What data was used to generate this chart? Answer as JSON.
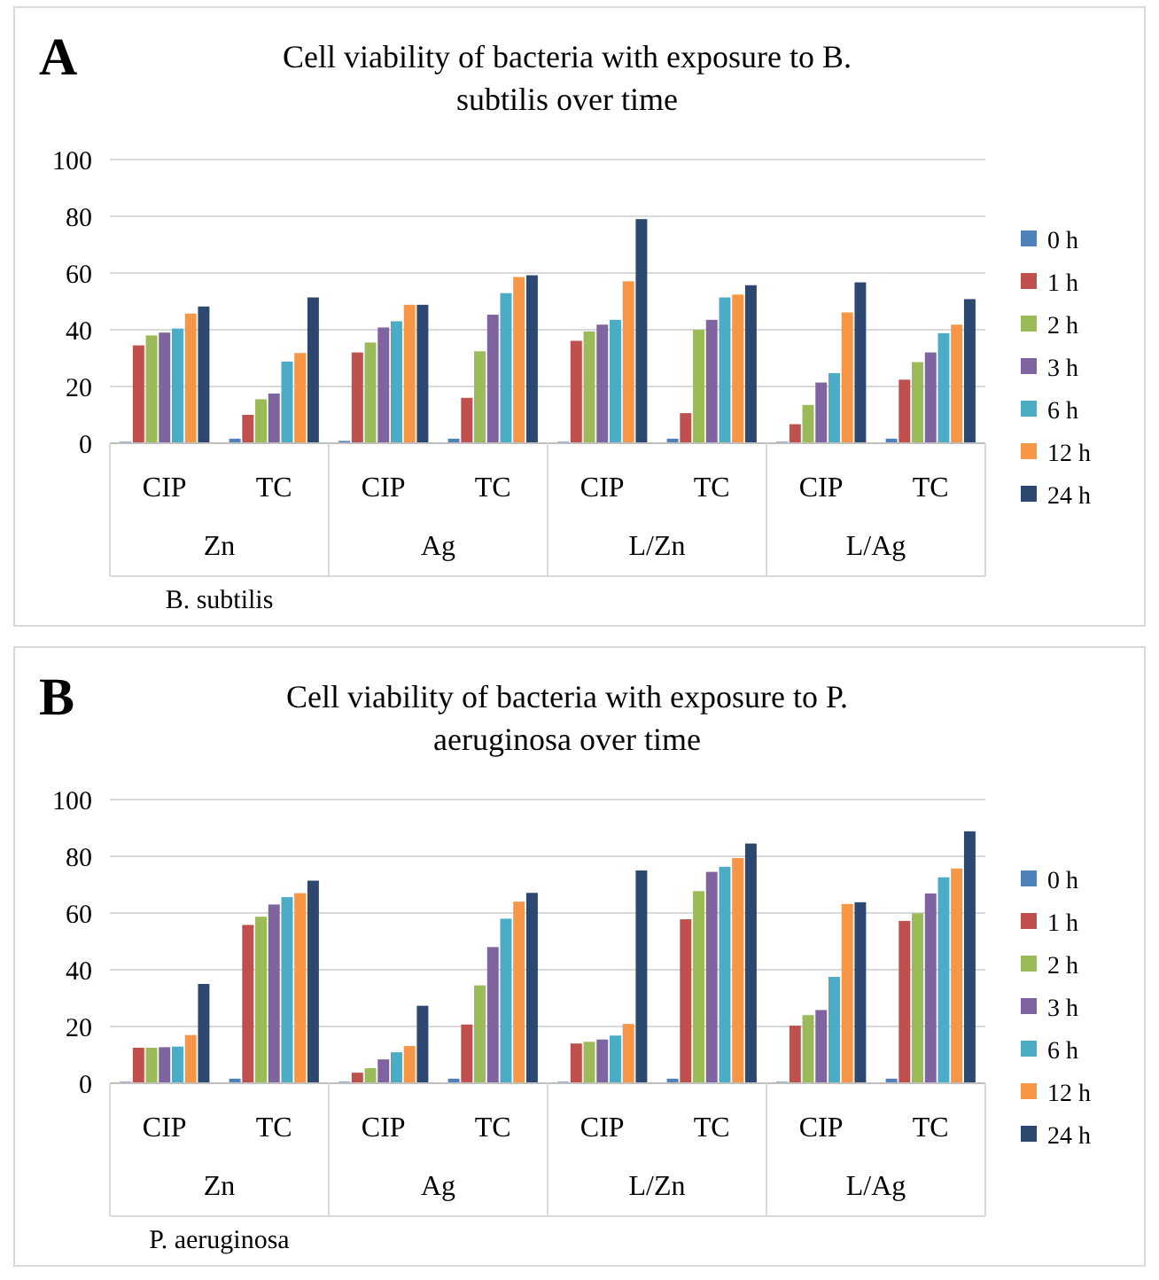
{
  "chart_data": [
    {
      "type": "bar",
      "title": "Cell viability of bacteria with exposure to B. subtilis over time",
      "xlabel": "B. subtilis",
      "annotations": [
        "A",
        "Zn",
        "Ag",
        "L/Zn",
        "L/Ag"
      ],
      "categories": [
        "CIP",
        "TC",
        "CIP",
        "TC",
        "CIP",
        "TC",
        "CIP",
        "TC"
      ],
      "ylim": [
        0,
        100
      ],
      "yticks": [
        0,
        20,
        40,
        60,
        80,
        100
      ],
      "grid": "y",
      "legend": "right",
      "series": [
        {
          "name": "0 h",
          "color": "#4f81bd",
          "values": [
            0.5,
            1.6,
            0.8,
            1.6,
            0.5,
            1.6,
            0.5,
            1.6
          ]
        },
        {
          "name": "1 h",
          "color": "#c0504d",
          "values": [
            34.5,
            10,
            32,
            16,
            36.1,
            10.6,
            6.7,
            22.4
          ]
        },
        {
          "name": "2 h",
          "color": "#9bbb59",
          "values": [
            38,
            15.5,
            35.5,
            32.4,
            39.4,
            40,
            13.5,
            28.6
          ]
        },
        {
          "name": "3 h",
          "color": "#8064a2",
          "values": [
            39,
            17.5,
            40.8,
            45.3,
            41.8,
            43.5,
            21.4,
            32
          ]
        },
        {
          "name": "6 h",
          "color": "#4bacc6",
          "values": [
            40.4,
            28.8,
            43,
            52.9,
            43.5,
            51.4,
            24.7,
            38.8
          ]
        },
        {
          "name": "12 h",
          "color": "#f79646",
          "values": [
            45.7,
            31.8,
            48.8,
            58.6,
            57.1,
            52.4,
            46.1,
            41.8
          ]
        },
        {
          "name": "24 h",
          "color": "#2c4770",
          "values": [
            48.2,
            51.4,
            48.8,
            59.2,
            79,
            55.7,
            56.7,
            50.8
          ]
        }
      ]
    },
    {
      "type": "bar",
      "title": "Cell viability of bacteria with exposure to P. aeruginosa over time",
      "xlabel": "P. aeruginosa",
      "annotations": [
        "B",
        "Zn",
        "Ag",
        "L/Zn",
        "L/Ag"
      ],
      "categories": [
        "CIP",
        "TC",
        "CIP",
        "TC",
        "CIP",
        "TC",
        "CIP",
        "TC"
      ],
      "ylim": [
        0,
        100
      ],
      "yticks": [
        0,
        20,
        40,
        60,
        80,
        100
      ],
      "grid": "y",
      "legend": "right",
      "series": [
        {
          "name": "0 h",
          "color": "#4f81bd",
          "values": [
            0.5,
            1.6,
            0.5,
            1.6,
            0.5,
            1.6,
            0.5,
            1.6
          ]
        },
        {
          "name": "1 h",
          "color": "#c0504d",
          "values": [
            12.5,
            55.8,
            3.7,
            20.7,
            14,
            57.8,
            20.3,
            57.2
          ]
        },
        {
          "name": "2 h",
          "color": "#9bbb59",
          "values": [
            12.5,
            58.7,
            5.3,
            34.5,
            14.6,
            67.7,
            24,
            59.9
          ]
        },
        {
          "name": "3 h",
          "color": "#8064a2",
          "values": [
            12.7,
            63,
            8.4,
            48,
            15.4,
            74.5,
            25.8,
            66.9
          ]
        },
        {
          "name": "6 h",
          "color": "#4bacc6",
          "values": [
            12.9,
            65.6,
            10.9,
            58,
            16.8,
            76.3,
            37.5,
            72.6
          ]
        },
        {
          "name": "12 h",
          "color": "#f79646",
          "values": [
            17,
            67,
            13.1,
            64,
            20.9,
            79.4,
            63.2,
            75.7
          ]
        },
        {
          "name": "24 h",
          "color": "#2c4770",
          "values": [
            35,
            71.4,
            27.3,
            67.1,
            75,
            84.5,
            63.8,
            88.8
          ]
        }
      ]
    }
  ]
}
